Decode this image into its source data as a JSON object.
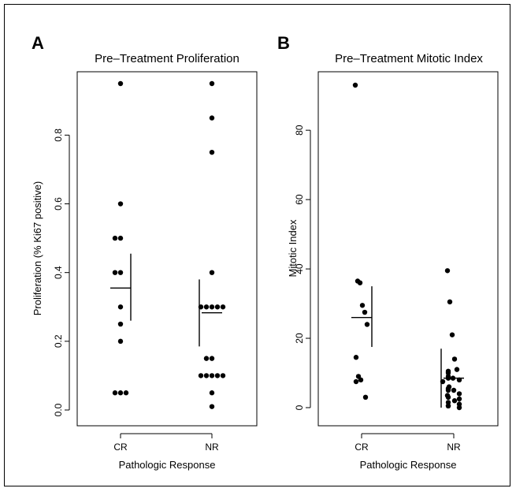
{
  "chart_data": [
    {
      "panel": "A",
      "type": "scatter",
      "title": "Pre–Treatment Proliferation",
      "xlabel": "Pathologic Response",
      "ylabel": "Proliferation (% Ki67 positive)",
      "categories": [
        "CR",
        "NR"
      ],
      "ylim": [
        0,
        1
      ],
      "yticks": [
        "0.0",
        "0.2",
        "0.4",
        "0.6",
        "0.8"
      ],
      "ytick_values": [
        0,
        0.2,
        0.4,
        0.6,
        0.8
      ],
      "points": {
        "CR": [
          0.95,
          0.6,
          0.5,
          0.5,
          0.4,
          0.4,
          0.3,
          0.25,
          0.2,
          0.05,
          0.05,
          0.05
        ],
        "NR": [
          0.95,
          0.85,
          0.75,
          0.4,
          0.3,
          0.3,
          0.3,
          0.3,
          0.3,
          0.15,
          0.15,
          0.1,
          0.1,
          0.1,
          0.1,
          0.1,
          0.05,
          0.01
        ]
      },
      "summary": {
        "CR": {
          "mean": 0.355,
          "sd_low": 0.26,
          "sd_high": 0.455
        },
        "NR": {
          "mean": 0.283,
          "sd_low": 0.185,
          "sd_high": 0.38
        }
      }
    },
    {
      "panel": "B",
      "type": "scatter",
      "title": "Pre–Treatment Mitotic Index",
      "xlabel": "Pathologic Response",
      "ylabel": "Mitotic Index",
      "categories": [
        "CR",
        "NR"
      ],
      "ylim": [
        0,
        95
      ],
      "yticks": [
        "0",
        "20",
        "40",
        "60",
        "80"
      ],
      "ytick_values": [
        0,
        20,
        40,
        60,
        80
      ],
      "points": {
        "CR": [
          93,
          36.5,
          36,
          29.5,
          27.5,
          24,
          14.5,
          9,
          8,
          7.5,
          3
        ],
        "NR": [
          39.5,
          30.5,
          21,
          14,
          11,
          10.5,
          10,
          9,
          8.5,
          8.5,
          8,
          7.5,
          6,
          5.5,
          5,
          5,
          4,
          3.5,
          3,
          2.5,
          2,
          1.5,
          1,
          0.5,
          0.5,
          0
        ]
      },
      "summary": {
        "CR": {
          "mean": 26,
          "sd_low": 17.5,
          "sd_high": 35
        },
        "NR": {
          "mean": 8.5,
          "sd_low": 0,
          "sd_high": 17
        }
      }
    }
  ]
}
